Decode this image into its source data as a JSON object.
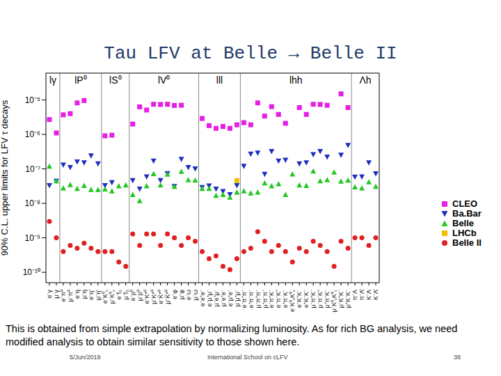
{
  "title": "Tau LFV at Belle → Belle II",
  "footnote": "This is obtained from simple extrapolation by normalizing luminosity. As for rich BG analysis, we need modified analysis to obtain similar sensitivity to those shown here.",
  "footer": {
    "date": "5/Jun/2019",
    "event": "International School on cLFV",
    "page": "38"
  },
  "chart_data": {
    "type": "scatter",
    "ylabel": "90% C.L. upper limits for LFV τ decays",
    "log": "y",
    "grid": false,
    "legend": "right",
    "groups": [
      {
        "label": "lγ",
        "count": 2
      },
      {
        "label": "lP⁰",
        "count": 6
      },
      {
        "label": "lS⁰",
        "count": 4
      },
      {
        "label": "lV⁰",
        "count": 10
      },
      {
        "label": "lll",
        "count": 6
      },
      {
        "label": "lhh",
        "count": 16
      },
      {
        "label": "Λh",
        "count": 4
      }
    ],
    "categories": [
      "e⁻γ",
      "μ⁻γ",
      "e⁻π⁰",
      "μ⁻π⁰",
      "e⁻η",
      "μ⁻η",
      "e⁻η'",
      "μ⁻η'",
      "e⁻K⁰ₛ",
      "μ⁻K⁰ₛ",
      "e⁻f₀",
      "μ⁻f₀",
      "e⁻ρ⁰",
      "μ⁻ρ⁰",
      "e⁻K*⁰",
      "μ⁻K*⁰",
      "e⁻K̄*⁰",
      "μ⁻K̄*⁰",
      "e⁻φ",
      "μ⁻φ",
      "e⁻ω",
      "μ⁻ω",
      "e⁻e⁺e⁻",
      "e⁻μ⁺μ⁻",
      "μ⁻e⁺μ⁻",
      "μ⁻e⁺e⁻",
      "e⁻μ⁺e⁻",
      "μ⁻μ⁺μ⁻",
      "e⁻π⁺π⁻",
      "e⁺π⁻π⁻",
      "μ⁻π⁺π⁻",
      "μ⁺π⁻π⁻",
      "e⁻π⁺K⁻",
      "e⁻π⁻K⁺",
      "e⁺π⁻K⁻",
      "e⁻K⁰ₛK⁰ₛ",
      "e⁻K⁺K⁻",
      "e⁺K⁻K⁻",
      "μ⁻π⁺K⁻",
      "μ⁻π⁻K⁺",
      "μ⁺π⁻K⁻",
      "μ⁻K⁰ₛK⁰ₛ",
      "μ⁻K⁺K⁻",
      "μ⁺K⁻K⁻",
      "π⁻Λ",
      "π⁻Λ̄",
      "K⁻Λ",
      "K⁻Λ̄"
    ],
    "ylim": [
      5e-11,
      6e-05
    ],
    "yticks": [
      {
        "value": 1e-10,
        "label": "10⁻¹⁰"
      },
      {
        "value": 1e-09,
        "label": "10⁻⁹"
      },
      {
        "value": 1e-08,
        "label": "10⁻⁸"
      },
      {
        "value": 1e-07,
        "label": "10⁻⁷"
      },
      {
        "value": 1e-06,
        "label": "10⁻⁶"
      },
      {
        "value": 1e-05,
        "label": "10⁻⁵"
      }
    ],
    "series": [
      {
        "name": "CLEO",
        "color": "#e61ee6",
        "marker": "square",
        "values": [
          2.7e-06,
          1.1e-06,
          3.7e-06,
          4e-06,
          8.2e-06,
          9.6e-06,
          null,
          null,
          9.1e-07,
          9.5e-07,
          null,
          null,
          2e-06,
          6.3e-06,
          5.1e-06,
          7.5e-06,
          7.4e-06,
          7.5e-06,
          6.9e-06,
          7e-06,
          null,
          null,
          2.9e-06,
          1.8e-06,
          1.5e-06,
          1.7e-06,
          1.5e-06,
          1.9e-06,
          2.2e-06,
          1.9e-06,
          8.2e-06,
          3.4e-06,
          6.4e-06,
          3.8e-06,
          2.1e-06,
          null,
          6e-06,
          3.8e-06,
          7.5e-06,
          7.4e-06,
          7e-06,
          null,
          1.5e-05,
          6e-06,
          null,
          null,
          null,
          null
        ]
      },
      {
        "name": "Ba.Bar",
        "color": "#1e2fbe",
        "marker": "triangle_down",
        "values": [
          3.3e-08,
          4.4e-08,
          1.3e-07,
          1.1e-07,
          1.6e-07,
          1.5e-07,
          2.4e-07,
          1.4e-07,
          3.3e-08,
          4e-08,
          null,
          null,
          4.6e-08,
          2.6e-08,
          5.9e-08,
          1.7e-07,
          4.6e-08,
          7.3e-08,
          3.1e-08,
          1.9e-07,
          1.1e-07,
          1e-07,
          2.9e-08,
          3.2e-08,
          2.6e-08,
          2.2e-08,
          1.8e-08,
          3.3e-08,
          1.2e-07,
          2.7e-07,
          2.9e-07,
          7e-08,
          3.2e-07,
          1.7e-07,
          1.8e-07,
          null,
          1.4e-07,
          1.5e-07,
          2.6e-07,
          3.2e-07,
          2.2e-07,
          null,
          2.5e-07,
          4.8e-07,
          5.8e-08,
          5.9e-08,
          1.5e-07,
          7.2e-08
        ]
      },
      {
        "name": "Belle",
        "color": "#22c822",
        "marker": "triangle_up",
        "values": [
          1.2e-07,
          4.5e-08,
          2.8e-08,
          3.5e-08,
          2.7e-08,
          3.3e-08,
          2.5e-08,
          2.5e-08,
          2.6e-08,
          2.3e-08,
          3.2e-08,
          3.4e-08,
          1.8e-08,
          1.2e-08,
          3.2e-08,
          7.2e-08,
          3.4e-08,
          7e-08,
          3.1e-08,
          8.4e-08,
          4.8e-08,
          4.7e-08,
          2.7e-08,
          2.7e-08,
          1.7e-08,
          1.8e-08,
          1.5e-08,
          2.1e-08,
          2.3e-08,
          2e-08,
          2.1e-08,
          3.9e-08,
          3.2e-08,
          3.7e-08,
          1.8e-08,
          7.1e-08,
          3.4e-08,
          3.3e-08,
          8.6e-08,
          4.5e-08,
          4.8e-08,
          8e-08,
          4.4e-08,
          4.7e-08,
          3e-08,
          2.8e-08,
          4.2e-08,
          3.1e-08
        ]
      },
      {
        "name": "LHCb",
        "color": "#f0bd00",
        "marker": "square",
        "values": [
          null,
          null,
          null,
          null,
          null,
          null,
          null,
          null,
          null,
          null,
          null,
          null,
          null,
          null,
          null,
          null,
          null,
          null,
          null,
          null,
          null,
          null,
          null,
          null,
          null,
          null,
          null,
          4.6e-08,
          null,
          null,
          null,
          null,
          null,
          null,
          null,
          null,
          null,
          null,
          null,
          null,
          null,
          null,
          null,
          null,
          null,
          null,
          null,
          null
        ]
      },
      {
        "name": "Belle II",
        "color": "#e02020",
        "marker": "circle",
        "values": [
          3e-09,
          1e-09,
          4e-10,
          6e-10,
          5e-10,
          7e-10,
          5e-10,
          4e-10,
          4e-10,
          4e-10,
          2e-10,
          1.5e-10,
          1.3e-09,
          6e-10,
          1.3e-09,
          1.3e-09,
          6e-10,
          1.3e-09,
          1e-09,
          6e-10,
          1e-09,
          8e-10,
          4e-10,
          2.5e-10,
          3e-10,
          1.5e-10,
          1.2e-10,
          2.5e-10,
          4e-10,
          5e-10,
          1.5e-09,
          8e-10,
          4e-10,
          6e-10,
          4e-10,
          2e-10,
          5e-10,
          4e-10,
          8e-10,
          6e-10,
          4e-10,
          1.5e-10,
          8e-10,
          5e-10,
          1e-09,
          1e-09,
          6e-10,
          1e-09
        ]
      }
    ]
  }
}
